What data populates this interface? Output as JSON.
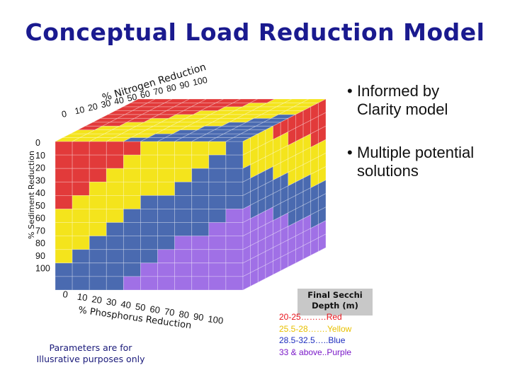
{
  "slide": {
    "title": "Conceptual Load Reduction Model",
    "bullets": [
      "Informed by Clarity model",
      "Multiple potential solutions"
    ],
    "note": "Parameters are for Illusrative purposes only"
  },
  "axes": {
    "nitrogen_label": "% Nitrogen Reduction",
    "sediment_label": "% Sediment Reduction",
    "phosphorus_label": "% Phosphorus Reduction",
    "nitrogen_ticks": [
      "0",
      "10",
      "20",
      "30",
      "40",
      "50",
      "60",
      "70",
      "80",
      "90",
      "100"
    ],
    "sediment_ticks": [
      "0",
      "10",
      "20",
      "30",
      "40",
      "50",
      "60",
      "70",
      "80",
      "90",
      "100"
    ],
    "phosphorus_ticks": [
      "0",
      "10",
      "20",
      "30",
      "40",
      "50",
      "60",
      "70",
      "80",
      "90",
      "100"
    ]
  },
  "legend": {
    "title": "Final Secchi Depth (m)",
    "items": [
      {
        "label": "20-25………Red",
        "color": "#e8141c"
      },
      {
        "label": "25.5-28…….Yellow",
        "color": "#e8c000"
      },
      {
        "label": "28.5-32.5…..Blue",
        "color": "#1c2cbe"
      },
      {
        "label": "33 & above..Purple",
        "color": "#7a18c8"
      }
    ]
  },
  "colors": {
    "red": "#e23a3a",
    "yellow": "#f4e41c",
    "blue": "#4a6ab0",
    "purple": "#a070e6"
  }
}
